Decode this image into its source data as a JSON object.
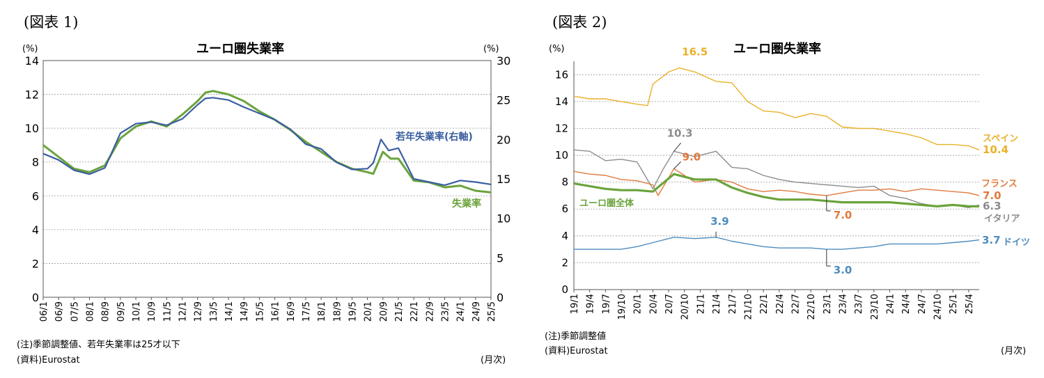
{
  "figures": [
    {
      "label": "(図表 1)",
      "title": "ユーロ圏失業率",
      "y_unit_left": "(%)",
      "y_unit_right": "(%)",
      "note": "(注)季節調整値、若年失業率は25才以下",
      "source": "(資料)Eurostat",
      "x_unit": "(月次)"
    },
    {
      "label": "(図表 2)",
      "title": "ユーロ圏失業率",
      "y_unit": "(%)",
      "note": "(注)季節調整値",
      "source": "(資料)Eurostat",
      "x_unit": "(月次)"
    }
  ],
  "chart_data": [
    {
      "type": "line",
      "title": "ユーロ圏失業率",
      "x_start": "2006-01",
      "x_end": "2025-05",
      "x_tick_labels": [
        "06/1",
        "06/9",
        "07/5",
        "08/1",
        "08/9",
        "09/5",
        "10/1",
        "10/9",
        "11/5",
        "12/1",
        "12/9",
        "13/5",
        "14/1",
        "14/9",
        "15/5",
        "16/1",
        "16/9",
        "17/5",
        "18/1",
        "18/9",
        "19/5",
        "20/1",
        "20/9",
        "21/5",
        "22/1",
        "22/9",
        "23/5",
        "24/1",
        "24/9",
        "25/5"
      ],
      "ylim_left": [
        0,
        14
      ],
      "yticks_left": [
        "0",
        "2",
        "4",
        "6",
        "8",
        "10",
        "12",
        "14"
      ],
      "ylim_right": [
        0,
        30
      ],
      "yticks_right": [
        "0",
        "5",
        "10",
        "15",
        "20",
        "25",
        "30"
      ],
      "grid": true,
      "series": [
        {
          "name": "失業率",
          "axis": "left",
          "color": "#6aa33b",
          "points": [
            [
              "2006-01",
              9.0
            ],
            [
              "2006-09",
              8.3
            ],
            [
              "2007-05",
              7.6
            ],
            [
              "2008-01",
              7.4
            ],
            [
              "2008-09",
              7.8
            ],
            [
              "2009-05",
              9.4
            ],
            [
              "2010-01",
              10.1
            ],
            [
              "2010-09",
              10.4
            ],
            [
              "2011-05",
              10.1
            ],
            [
              "2012-01",
              10.8
            ],
            [
              "2012-09",
              11.6
            ],
            [
              "2013-01",
              12.1
            ],
            [
              "2013-05",
              12.2
            ],
            [
              "2014-01",
              12.0
            ],
            [
              "2014-09",
              11.6
            ],
            [
              "2015-05",
              11.0
            ],
            [
              "2016-01",
              10.5
            ],
            [
              "2016-09",
              9.9
            ],
            [
              "2017-05",
              9.2
            ],
            [
              "2018-01",
              8.6
            ],
            [
              "2018-09",
              8.0
            ],
            [
              "2019-05",
              7.6
            ],
            [
              "2020-01",
              7.4
            ],
            [
              "2020-04",
              7.3
            ],
            [
              "2020-09",
              8.6
            ],
            [
              "2021-01",
              8.2
            ],
            [
              "2021-05",
              8.2
            ],
            [
              "2022-01",
              6.9
            ],
            [
              "2022-09",
              6.8
            ],
            [
              "2023-05",
              6.5
            ],
            [
              "2024-01",
              6.6
            ],
            [
              "2024-09",
              6.3
            ],
            [
              "2025-05",
              6.2
            ]
          ]
        },
        {
          "name": "若年失業率(右軸)",
          "axis": "right",
          "color": "#3a5ea0",
          "points": [
            [
              "2006-01",
              18.2
            ],
            [
              "2006-09",
              17.4
            ],
            [
              "2007-05",
              16.1
            ],
            [
              "2008-01",
              15.6
            ],
            [
              "2008-09",
              16.4
            ],
            [
              "2009-05",
              20.8
            ],
            [
              "2010-01",
              22.0
            ],
            [
              "2010-09",
              22.2
            ],
            [
              "2011-05",
              21.8
            ],
            [
              "2012-01",
              22.6
            ],
            [
              "2012-09",
              24.4
            ],
            [
              "2013-01",
              25.2
            ],
            [
              "2013-05",
              25.3
            ],
            [
              "2014-01",
              25.0
            ],
            [
              "2014-09",
              24.1
            ],
            [
              "2015-05",
              23.3
            ],
            [
              "2016-01",
              22.5
            ],
            [
              "2016-09",
              21.3
            ],
            [
              "2017-05",
              19.4
            ],
            [
              "2018-01",
              18.8
            ],
            [
              "2018-09",
              17.1
            ],
            [
              "2019-05",
              16.2
            ],
            [
              "2020-01",
              16.3
            ],
            [
              "2020-04",
              17.0
            ],
            [
              "2020-08",
              20.0
            ],
            [
              "2020-12",
              18.6
            ],
            [
              "2021-05",
              18.9
            ],
            [
              "2022-01",
              15.0
            ],
            [
              "2022-09",
              14.6
            ],
            [
              "2023-05",
              14.2
            ],
            [
              "2024-01",
              14.8
            ],
            [
              "2024-09",
              14.6
            ],
            [
              "2025-05",
              14.3
            ]
          ]
        }
      ]
    },
    {
      "type": "line",
      "title": "ユーロ圏失業率",
      "x_start": "2019-01",
      "x_end": "2025-06",
      "x_tick_labels": [
        "19/1",
        "19/4",
        "19/7",
        "19/10",
        "20/1",
        "20/4",
        "20/7",
        "20/10",
        "21/1",
        "21/4",
        "21/7",
        "21/10",
        "22/1",
        "22/4",
        "22/7",
        "22/10",
        "23/1",
        "23/4",
        "23/7",
        "23/10",
        "24/1",
        "24/4",
        "24/7",
        "24/10",
        "25/1",
        "25/4"
      ],
      "ylim": [
        0,
        17
      ],
      "yticks": [
        "0",
        "2",
        "4",
        "6",
        "8",
        "10",
        "12",
        "14",
        "16"
      ],
      "grid": true,
      "series": [
        {
          "name": "スペイン",
          "color": "#e9b128",
          "points": [
            [
              "2019-01",
              14.4
            ],
            [
              "2019-04",
              14.2
            ],
            [
              "2019-07",
              14.2
            ],
            [
              "2019-10",
              14.0
            ],
            [
              "2020-01",
              13.8
            ],
            [
              "2020-03",
              13.7
            ],
            [
              "2020-04",
              15.3
            ],
            [
              "2020-07",
              16.2
            ],
            [
              "2020-09",
              16.5
            ],
            [
              "2020-12",
              16.2
            ],
            [
              "2021-04",
              15.5
            ],
            [
              "2021-07",
              15.4
            ],
            [
              "2021-10",
              14.0
            ],
            [
              "2022-01",
              13.3
            ],
            [
              "2022-04",
              13.2
            ],
            [
              "2022-07",
              12.8
            ],
            [
              "2022-10",
              13.1
            ],
            [
              "2023-01",
              12.9
            ],
            [
              "2023-04",
              12.1
            ],
            [
              "2023-07",
              12.0
            ],
            [
              "2023-10",
              12.0
            ],
            [
              "2024-01",
              11.8
            ],
            [
              "2024-04",
              11.6
            ],
            [
              "2024-07",
              11.3
            ],
            [
              "2024-10",
              10.8
            ],
            [
              "2025-01",
              10.8
            ],
            [
              "2025-04",
              10.7
            ],
            [
              "2025-06",
              10.4
            ]
          ]
        },
        {
          "name": "イタリア",
          "color": "#8c8c8c",
          "points": [
            [
              "2019-01",
              10.4
            ],
            [
              "2019-04",
              10.3
            ],
            [
              "2019-07",
              9.6
            ],
            [
              "2019-10",
              9.7
            ],
            [
              "2020-01",
              9.5
            ],
            [
              "2020-04",
              7.5
            ],
            [
              "2020-06",
              9.0
            ],
            [
              "2020-08",
              10.3
            ],
            [
              "2020-12",
              9.9
            ],
            [
              "2021-04",
              10.3
            ],
            [
              "2021-07",
              9.1
            ],
            [
              "2021-10",
              9.0
            ],
            [
              "2022-01",
              8.5
            ],
            [
              "2022-04",
              8.2
            ],
            [
              "2022-07",
              8.0
            ],
            [
              "2022-10",
              7.9
            ],
            [
              "2023-01",
              7.8
            ],
            [
              "2023-04",
              7.7
            ],
            [
              "2023-07",
              7.6
            ],
            [
              "2023-10",
              7.7
            ],
            [
              "2024-01",
              7.0
            ],
            [
              "2024-04",
              6.8
            ],
            [
              "2024-07",
              6.4
            ],
            [
              "2024-10",
              6.2
            ],
            [
              "2025-01",
              6.3
            ],
            [
              "2025-04",
              6.1
            ],
            [
              "2025-06",
              6.3
            ]
          ]
        },
        {
          "name": "フランス",
          "color": "#e07a3c",
          "points": [
            [
              "2019-01",
              8.8
            ],
            [
              "2019-04",
              8.6
            ],
            [
              "2019-07",
              8.5
            ],
            [
              "2019-10",
              8.2
            ],
            [
              "2020-01",
              8.1
            ],
            [
              "2020-04",
              7.8
            ],
            [
              "2020-05",
              7.0
            ],
            [
              "2020-08",
              9.0
            ],
            [
              "2020-12",
              8.0
            ],
            [
              "2021-04",
              8.2
            ],
            [
              "2021-07",
              8.0
            ],
            [
              "2021-10",
              7.5
            ],
            [
              "2022-01",
              7.3
            ],
            [
              "2022-04",
              7.4
            ],
            [
              "2022-07",
              7.3
            ],
            [
              "2022-10",
              7.1
            ],
            [
              "2023-01",
              7.0
            ],
            [
              "2023-04",
              7.2
            ],
            [
              "2023-07",
              7.4
            ],
            [
              "2023-10",
              7.4
            ],
            [
              "2024-01",
              7.5
            ],
            [
              "2024-04",
              7.3
            ],
            [
              "2024-07",
              7.5
            ],
            [
              "2024-10",
              7.4
            ],
            [
              "2025-01",
              7.3
            ],
            [
              "2025-04",
              7.2
            ],
            [
              "2025-06",
              7.0
            ]
          ]
        },
        {
          "name": "ユーロ圏全体",
          "color": "#6aa33b",
          "points": [
            [
              "2019-01",
              7.9
            ],
            [
              "2019-04",
              7.7
            ],
            [
              "2019-07",
              7.5
            ],
            [
              "2019-10",
              7.4
            ],
            [
              "2020-01",
              7.4
            ],
            [
              "2020-04",
              7.3
            ],
            [
              "2020-08",
              8.6
            ],
            [
              "2020-12",
              8.2
            ],
            [
              "2021-04",
              8.2
            ],
            [
              "2021-07",
              7.6
            ],
            [
              "2021-10",
              7.2
            ],
            [
              "2022-01",
              6.9
            ],
            [
              "2022-04",
              6.7
            ],
            [
              "2022-07",
              6.7
            ],
            [
              "2022-10",
              6.7
            ],
            [
              "2023-01",
              6.6
            ],
            [
              "2023-04",
              6.5
            ],
            [
              "2023-07",
              6.5
            ],
            [
              "2023-10",
              6.5
            ],
            [
              "2024-01",
              6.5
            ],
            [
              "2024-04",
              6.4
            ],
            [
              "2024-07",
              6.3
            ],
            [
              "2024-10",
              6.2
            ],
            [
              "2025-01",
              6.3
            ],
            [
              "2025-04",
              6.2
            ],
            [
              "2025-06",
              6.2
            ]
          ]
        },
        {
          "name": "ドイツ",
          "color": "#4e8cbf",
          "points": [
            [
              "2019-01",
              3.0
            ],
            [
              "2019-04",
              3.0
            ],
            [
              "2019-07",
              3.0
            ],
            [
              "2019-10",
              3.0
            ],
            [
              "2020-01",
              3.2
            ],
            [
              "2020-04",
              3.5
            ],
            [
              "2020-08",
              3.9
            ],
            [
              "2020-12",
              3.8
            ],
            [
              "2021-04",
              3.9
            ],
            [
              "2021-07",
              3.6
            ],
            [
              "2021-10",
              3.4
            ],
            [
              "2022-01",
              3.2
            ],
            [
              "2022-04",
              3.1
            ],
            [
              "2022-07",
              3.1
            ],
            [
              "2022-10",
              3.1
            ],
            [
              "2023-01",
              3.0
            ],
            [
              "2023-04",
              3.0
            ],
            [
              "2023-07",
              3.1
            ],
            [
              "2023-10",
              3.2
            ],
            [
              "2024-01",
              3.4
            ],
            [
              "2024-04",
              3.4
            ],
            [
              "2024-07",
              3.4
            ],
            [
              "2024-10",
              3.4
            ],
            [
              "2025-01",
              3.5
            ],
            [
              "2025-04",
              3.6
            ],
            [
              "2025-06",
              3.7
            ]
          ]
        }
      ],
      "annotations": [
        {
          "text": "16.5",
          "color": "#e9b128",
          "date": "2020-09",
          "value": 16.5
        },
        {
          "text": "10.3",
          "color": "#8c8c8c",
          "date": "2020-08",
          "value": 10.3
        },
        {
          "text": "9.0",
          "color": "#e07a3c",
          "date": "2020-08",
          "value": 9.0
        },
        {
          "text": "3.9",
          "color": "#4e8cbf",
          "date": "2021-04",
          "value": 3.9
        },
        {
          "text": "7.0",
          "color": "#e07a3c",
          "date": "2023-01",
          "value": 7.0
        },
        {
          "text": "3.0",
          "color": "#4e8cbf",
          "date": "2023-01",
          "value": 3.0
        }
      ],
      "end_labels": [
        {
          "text": "スペイン",
          "color": "#e9b128"
        },
        {
          "text": "10.4",
          "color": "#e9b128"
        },
        {
          "text": "フランス",
          "color": "#e07a3c"
        },
        {
          "text": "7.0",
          "color": "#e07a3c"
        },
        {
          "text": "6.3",
          "color": "#8c8c8c"
        },
        {
          "text": "イタリア",
          "color": "#8c8c8c"
        },
        {
          "text": "3.7",
          "color": "#4e8cbf"
        },
        {
          "text": "ドイツ",
          "color": "#4e8cbf"
        },
        {
          "text": "ユーロ圏全体",
          "color": "#6aa33b"
        }
      ]
    }
  ]
}
